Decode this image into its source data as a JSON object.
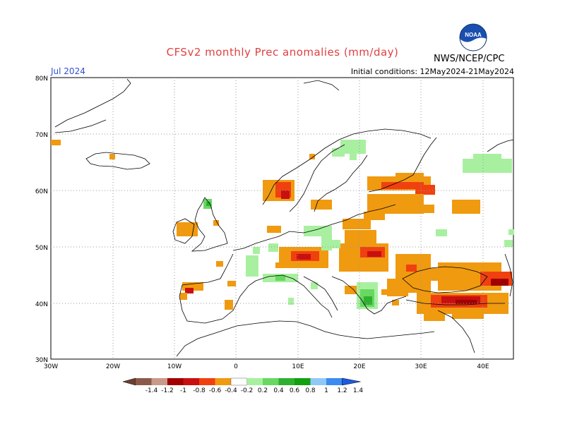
{
  "header": {
    "title": "CFSv2 monthly Prec anomalies (mm/day)",
    "title_color": "#e04040",
    "month": "Jul 2024",
    "initial_conditions": "Initial conditions: 12May2024-21May2024",
    "agency": "NWS/NCEP/CPC",
    "logo_text": "NOAA"
  },
  "map": {
    "region": "Europe",
    "lon_range": [
      -30,
      45
    ],
    "lat_range": [
      30,
      80
    ],
    "lat_labels": [
      "80N",
      "70N",
      "60N",
      "50N",
      "40N",
      "30N"
    ],
    "lon_labels": [
      "30W",
      "20W",
      "10W",
      "0",
      "10E",
      "20E",
      "30E",
      "40E"
    ],
    "grid": "dotted every 10 degrees",
    "anomaly_regions": [
      {
        "name": "Scandinavia west coast",
        "sign": "dry",
        "max": -1.0
      },
      {
        "name": "Finland / NW Russia",
        "sign": "dry",
        "max": -1.0
      },
      {
        "name": "Alps / Switzerland",
        "sign": "dry",
        "max": -1.0
      },
      {
        "name": "Eastern Europe / Ukraine",
        "sign": "dry",
        "max": -0.8
      },
      {
        "name": "Black Sea / Caucasus",
        "sign": "dry",
        "max": -1.0
      },
      {
        "name": "Anatolia south coast",
        "sign": "dry",
        "max": -0.8
      },
      {
        "name": "Greece",
        "sign": "wet",
        "max": 0.8
      },
      {
        "name": "Northern Scandinavia",
        "sign": "wet",
        "max": 0.4
      },
      {
        "name": "France",
        "sign": "wet",
        "max": 0.4
      }
    ]
  },
  "colorbar": {
    "labels": [
      "-1.4",
      "-1.2",
      "-1",
      "-0.8",
      "-0.6",
      "-0.4",
      "-0.2",
      "0.2",
      "0.4",
      "0.6",
      "0.8",
      "1",
      "1.2",
      "1.4"
    ],
    "colors": [
      "#6b4030",
      "#8c5a4a",
      "#c89a8a",
      "#a00000",
      "#c81010",
      "#f04010",
      "#f09a10",
      "#ffffff",
      "#a8f0a0",
      "#68d860",
      "#30b030",
      "#10a010",
      "#90c8f8",
      "#3c8cf0",
      "#1c5ae0"
    ]
  }
}
